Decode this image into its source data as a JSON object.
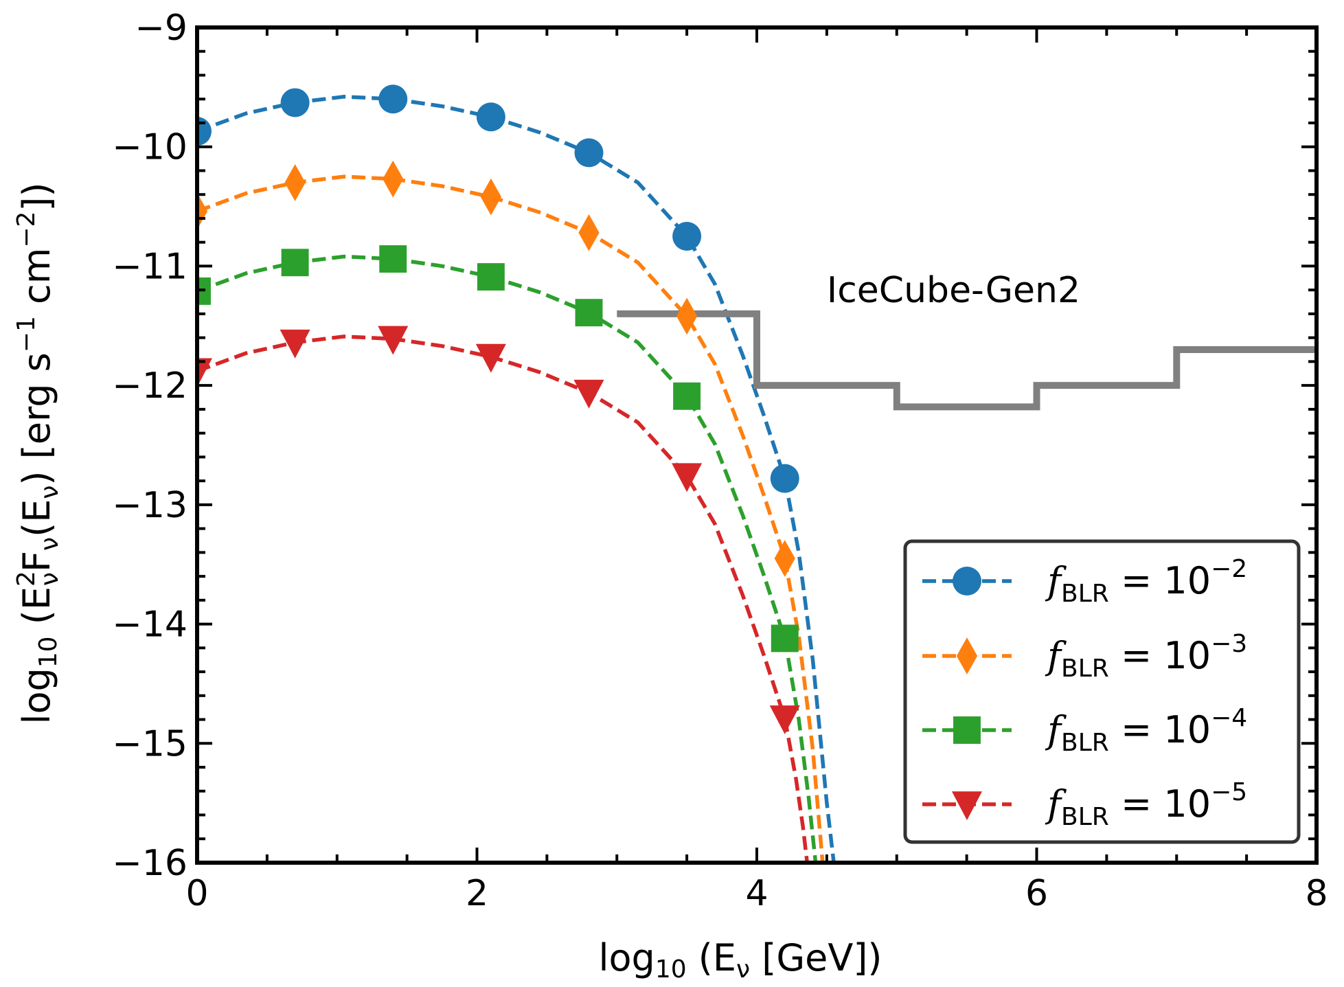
{
  "chart_data": {
    "type": "line",
    "title": "",
    "xlabel": "log10 (Eν [GeV])",
    "ylabel": "log10 (E²νFν(Eν) [erg s⁻¹ cm⁻²])",
    "xlabel_parts": {
      "main": "log",
      "sub": "10",
      "rest": " (E",
      "nu": "ν",
      "tail": " [GeV])"
    },
    "ylabel_parts": {
      "main": "log",
      "sub": "10",
      "open": " (E",
      "sup2": "2",
      "nu1": "ν",
      "F": "F",
      "nu2": "ν",
      "mid": "(E",
      "nu3": "ν",
      "units": ") [erg s",
      "sup_m1": "−1",
      "cm": " cm",
      "sup_m2": "−2",
      "close": "])"
    },
    "xlim": [
      0,
      8
    ],
    "ylim": [
      -16,
      -9
    ],
    "xticks": [
      "0",
      "2",
      "4",
      "6",
      "8"
    ],
    "yticks": [
      "−16",
      "−15",
      "−14",
      "−13",
      "−12",
      "−11",
      "−10",
      "−9"
    ],
    "xtick_values": [
      0,
      2,
      4,
      6,
      8
    ],
    "ytick_values": [
      -16,
      -15,
      -14,
      -13,
      -12,
      -11,
      -10,
      -9
    ],
    "grid": false,
    "legend_position": "bottom-right",
    "series": [
      {
        "name": "f_BLR = 10^-2",
        "legend_base": "10",
        "legend_exp": "−2",
        "color": "#1f77b4",
        "marker": "circle",
        "marker_x": [
          0,
          0.7,
          1.4,
          2.1,
          2.8,
          3.5,
          4.2
        ],
        "marker_y": [
          -9.87,
          -9.63,
          -9.6,
          -9.75,
          -10.05,
          -10.75,
          -12.78
        ],
        "curve_x": [
          0,
          0.35,
          0.7,
          1.05,
          1.4,
          1.75,
          2.1,
          2.45,
          2.8,
          3.15,
          3.5,
          3.7,
          3.9,
          4.05,
          4.2,
          4.3,
          4.4,
          4.5,
          4.55
        ],
        "curve_y": [
          -9.87,
          -9.72,
          -9.63,
          -9.58,
          -9.6,
          -9.66,
          -9.75,
          -9.88,
          -10.05,
          -10.3,
          -10.75,
          -11.15,
          -11.75,
          -12.25,
          -12.78,
          -13.4,
          -14.3,
          -15.5,
          -16.0
        ]
      },
      {
        "name": "f_BLR = 10^-3",
        "legend_base": "10",
        "legend_exp": "−3",
        "color": "#ff7f0e",
        "marker": "diamond",
        "marker_x": [
          0,
          0.7,
          1.4,
          2.1,
          2.8,
          3.5,
          4.2
        ],
        "marker_y": [
          -10.54,
          -10.3,
          -10.27,
          -10.42,
          -10.72,
          -11.42,
          -13.45
        ],
        "curve_x": [
          0,
          0.35,
          0.7,
          1.05,
          1.4,
          1.75,
          2.1,
          2.45,
          2.8,
          3.15,
          3.5,
          3.7,
          3.9,
          4.05,
          4.2,
          4.3,
          4.4,
          4.47
        ],
        "curve_y": [
          -10.54,
          -10.39,
          -10.3,
          -10.25,
          -10.27,
          -10.33,
          -10.42,
          -10.55,
          -10.72,
          -10.97,
          -11.42,
          -11.82,
          -12.42,
          -12.92,
          -13.45,
          -14.1,
          -15.05,
          -16.0
        ]
      },
      {
        "name": "f_BLR = 10^-4",
        "legend_base": "10",
        "legend_exp": "−4",
        "color": "#2ca02c",
        "marker": "square",
        "marker_x": [
          0,
          0.7,
          1.4,
          2.1,
          2.8,
          3.5,
          4.2
        ],
        "marker_y": [
          -11.21,
          -10.97,
          -10.94,
          -11.09,
          -11.39,
          -12.09,
          -14.12
        ],
        "curve_x": [
          0,
          0.35,
          0.7,
          1.05,
          1.4,
          1.75,
          2.1,
          2.45,
          2.8,
          3.15,
          3.5,
          3.7,
          3.9,
          4.05,
          4.2,
          4.3,
          4.37,
          4.42
        ],
        "curve_y": [
          -11.21,
          -11.06,
          -10.97,
          -10.92,
          -10.94,
          -11.0,
          -11.09,
          -11.22,
          -11.39,
          -11.64,
          -12.09,
          -12.49,
          -13.09,
          -13.59,
          -14.12,
          -14.8,
          -15.45,
          -16.0
        ]
      },
      {
        "name": "f_BLR = 10^-5",
        "legend_base": "10",
        "legend_exp": "−5",
        "color": "#d62728",
        "marker": "triangle-down",
        "marker_x": [
          0,
          0.7,
          1.4,
          2.1,
          2.8,
          3.5,
          4.2
        ],
        "marker_y": [
          -11.88,
          -11.64,
          -11.61,
          -11.76,
          -12.06,
          -12.76,
          -14.79
        ],
        "curve_x": [
          0,
          0.35,
          0.7,
          1.05,
          1.4,
          1.75,
          2.1,
          2.45,
          2.8,
          3.15,
          3.5,
          3.7,
          3.9,
          4.05,
          4.2,
          4.28,
          4.33,
          4.36
        ],
        "curve_y": [
          -11.88,
          -11.73,
          -11.64,
          -11.59,
          -11.61,
          -11.67,
          -11.76,
          -11.89,
          -12.06,
          -12.31,
          -12.76,
          -13.16,
          -13.76,
          -14.26,
          -14.79,
          -15.3,
          -15.7,
          -16.0
        ]
      }
    ],
    "reference_line": {
      "name": "IceCube-Gen2",
      "label": "IceCube-Gen2",
      "color": "#808080",
      "label_x": 4.5,
      "label_y": -11.2,
      "x": [
        3.0,
        4.0,
        4.0,
        5.0,
        5.0,
        6.0,
        6.0,
        7.0,
        7.0,
        8.0
      ],
      "y": [
        -11.4,
        -11.4,
        -12.0,
        -12.0,
        -12.18,
        -12.18,
        -12.0,
        -12.0,
        -11.7,
        -11.7
      ]
    }
  }
}
